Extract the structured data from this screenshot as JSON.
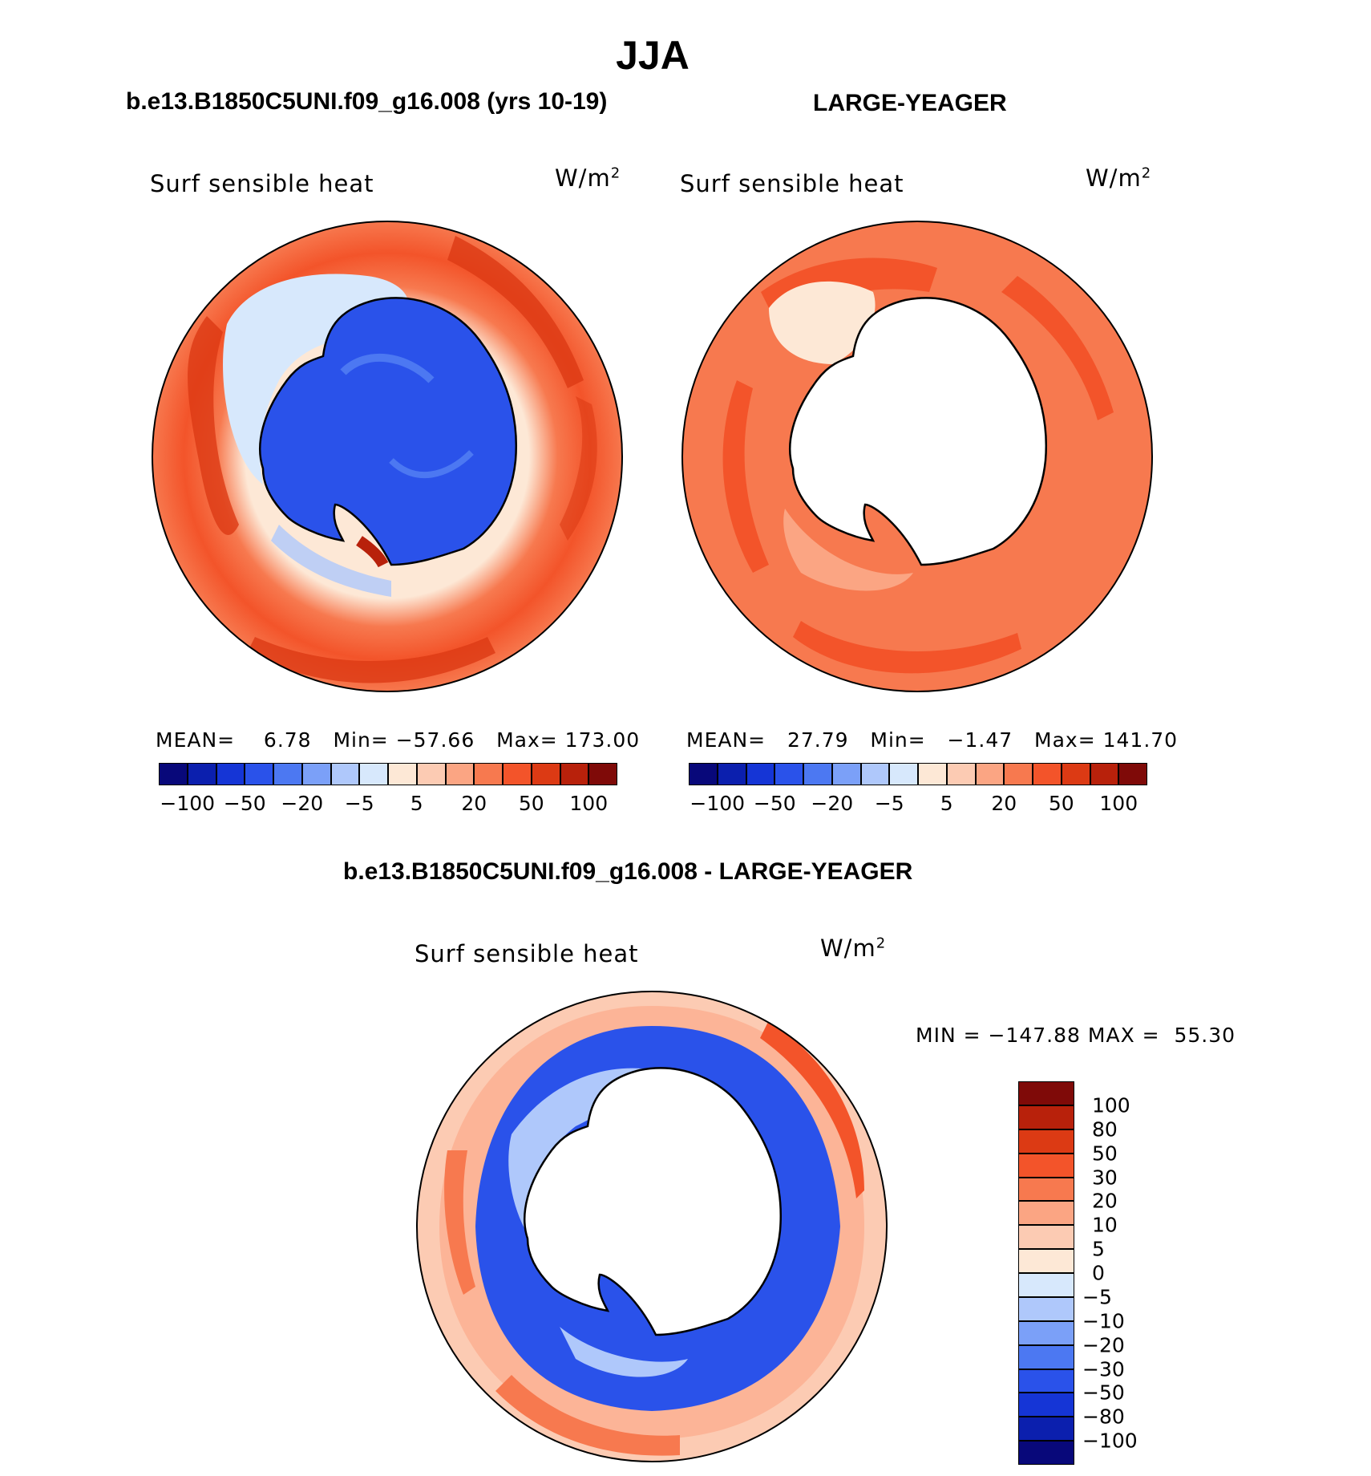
{
  "main_title": "JJA",
  "panels": [
    {
      "title": "b.e13.B1850C5UNI.f09_g16.008 (yrs 10-19)",
      "variable": "Surf sensible heat",
      "units": "W/m",
      "units_exp": "2",
      "stats": {
        "mean_label": "MEAN=",
        "mean": "6.78",
        "min_label": "Min=",
        "min": "−57.66",
        "max_label": "Max=",
        "max": "173.00"
      }
    },
    {
      "title": "LARGE-YEAGER",
      "variable": "Surf sensible heat",
      "units": "W/m",
      "units_exp": "2",
      "stats": {
        "mean_label": "MEAN=",
        "mean": "27.79",
        "min_label": "Min=",
        "min": "−1.47",
        "max_label": "Max=",
        "max": "141.70"
      }
    },
    {
      "title": "b.e13.B1850C5UNI.f09_g16.008 - LARGE-YEAGER",
      "variable": "Surf sensible heat",
      "units": "W/m",
      "units_exp": "2",
      "stats": {
        "min_label": "MIN =",
        "min": "−147.88",
        "max_label": "MAX =",
        "max": "55.30"
      }
    }
  ],
  "colorbar_top": {
    "colors": [
      "#08087a",
      "#0b1fae",
      "#1535d6",
      "#2a52ea",
      "#4c78f2",
      "#7ba0f8",
      "#afc8fb",
      "#d7e8fc",
      "#fde8d6",
      "#fccbb3",
      "#fba583",
      "#f7794f",
      "#f3542a",
      "#dc3a14",
      "#b8210b",
      "#7f0a08"
    ],
    "tick_labels": [
      "−100",
      "−50",
      "−20",
      "−5",
      "5",
      "20",
      "50",
      "100"
    ]
  },
  "colorbar_diff": {
    "colors": [
      "#7f0a08",
      "#b8210b",
      "#dc3a14",
      "#f3542a",
      "#f7794f",
      "#fba583",
      "#fccbb3",
      "#fde8d6",
      "#d7e8fc",
      "#afc8fb",
      "#7ba0f8",
      "#4c78f2",
      "#2a52ea",
      "#1535d6",
      "#0b1fae",
      "#08087a"
    ],
    "tick_labels": [
      "100",
      "80",
      "50",
      "30",
      "20",
      "10",
      "5",
      "0",
      "−5",
      "−10",
      "−20",
      "−30",
      "−50",
      "−80",
      "−100"
    ]
  }
}
